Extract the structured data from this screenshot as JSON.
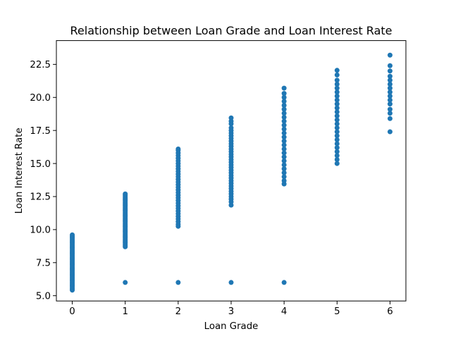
{
  "chart_data": {
    "type": "scatter",
    "title": "Relationship between Loan Grade and Loan Interest Rate",
    "xlabel": "Loan Grade",
    "ylabel": "Loan Interest Rate",
    "xlim": [
      -0.3,
      6.3
    ],
    "ylim": [
      4.6,
      24.3
    ],
    "xticks": [
      0,
      1,
      2,
      3,
      4,
      5,
      6
    ],
    "yticks": [
      5.0,
      7.5,
      10.0,
      12.5,
      15.0,
      17.5,
      20.0,
      22.5
    ],
    "grid": false,
    "marker_color": "#1f77b4",
    "groups": [
      {
        "x": 0,
        "y_values": [
          5.42,
          5.5,
          5.6,
          5.7,
          5.8,
          5.9,
          6.0,
          6.1,
          6.2,
          6.3,
          6.4,
          6.5,
          6.6,
          6.7,
          6.8,
          6.9,
          7.0,
          7.1,
          7.2,
          7.3,
          7.4,
          7.5,
          7.6,
          7.7,
          7.8,
          7.9,
          8.0,
          8.1,
          8.2,
          8.3,
          8.4,
          8.5,
          8.6,
          8.7,
          8.8,
          8.9,
          9.0,
          9.1,
          9.2,
          9.3,
          9.4,
          9.5,
          9.6
        ]
      },
      {
        "x": 1,
        "y_values": [
          6.0,
          8.7,
          8.8,
          8.9,
          9.0,
          9.1,
          9.2,
          9.3,
          9.4,
          9.5,
          9.6,
          9.7,
          9.8,
          9.9,
          10.0,
          10.1,
          10.2,
          10.3,
          10.4,
          10.5,
          10.6,
          10.7,
          10.8,
          10.9,
          11.0,
          11.1,
          11.2,
          11.3,
          11.4,
          11.5,
          11.6,
          11.7,
          11.8,
          11.9,
          12.0,
          12.1,
          12.2,
          12.3,
          12.4,
          12.5,
          12.6,
          12.7
        ]
      },
      {
        "x": 2,
        "y_values": [
          6.0,
          10.25,
          10.4,
          10.6,
          10.8,
          11.0,
          11.2,
          11.4,
          11.6,
          11.8,
          12.0,
          12.2,
          12.4,
          12.6,
          12.8,
          13.0,
          13.2,
          13.4,
          13.6,
          13.8,
          14.0,
          14.2,
          14.4,
          14.6,
          14.8,
          15.0,
          15.2,
          15.4,
          15.6,
          15.8,
          16.0,
          16.1
        ]
      },
      {
        "x": 3,
        "y_values": [
          6.0,
          11.85,
          12.1,
          12.3,
          12.5,
          12.7,
          12.9,
          13.1,
          13.3,
          13.5,
          13.7,
          13.9,
          14.1,
          14.3,
          14.5,
          14.7,
          14.9,
          15.1,
          15.3,
          15.5,
          15.7,
          15.9,
          16.1,
          16.3,
          16.5,
          16.7,
          16.9,
          17.1,
          17.3,
          17.5,
          17.7,
          18.0,
          18.2,
          18.45
        ]
      },
      {
        "x": 4,
        "y_values": [
          6.0,
          13.45,
          13.7,
          14.0,
          14.3,
          14.6,
          14.9,
          15.2,
          15.5,
          15.8,
          16.1,
          16.4,
          16.7,
          17.0,
          17.3,
          17.6,
          17.9,
          18.2,
          18.5,
          18.8,
          19.1,
          19.4,
          19.7,
          20.0,
          20.3,
          20.7
        ]
      },
      {
        "x": 5,
        "y_values": [
          15.0,
          15.3,
          15.6,
          15.9,
          16.2,
          16.5,
          16.8,
          17.1,
          17.4,
          17.7,
          18.0,
          18.3,
          18.6,
          18.9,
          19.2,
          19.5,
          19.8,
          20.1,
          20.4,
          20.7,
          21.0,
          21.3,
          21.7,
          22.05
        ]
      },
      {
        "x": 6,
        "y_values": [
          17.4,
          18.4,
          18.8,
          19.1,
          19.5,
          19.8,
          20.1,
          20.4,
          20.7,
          21.0,
          21.3,
          21.6,
          22.0,
          22.4,
          23.2
        ]
      }
    ]
  }
}
